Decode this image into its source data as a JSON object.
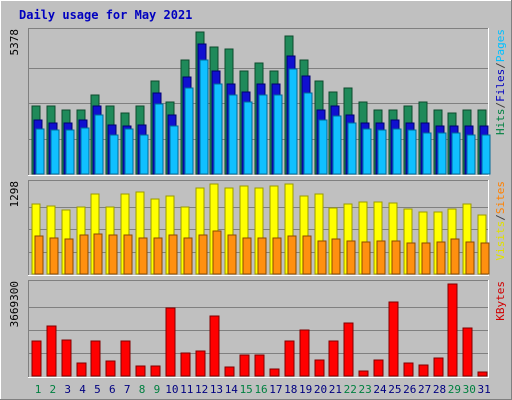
{
  "chart_data": {
    "type": "bar",
    "title": "Daily usage for May 2021",
    "categories": [
      "1",
      "2",
      "3",
      "4",
      "5",
      "6",
      "7",
      "8",
      "9",
      "10",
      "11",
      "12",
      "13",
      "14",
      "15",
      "16",
      "17",
      "18",
      "19",
      "20",
      "21",
      "22",
      "23",
      "24",
      "25",
      "26",
      "27",
      "28",
      "29",
      "30",
      "31"
    ],
    "weekend_days": [
      "1",
      "2",
      "8",
      "9",
      "15",
      "16",
      "22",
      "23",
      "29",
      "30"
    ],
    "panels": [
      {
        "name": "hits",
        "max_label": "5378",
        "ylim": [
          0,
          5378
        ],
        "side_labels": [
          {
            "text": "Hits",
            "color": "#008040"
          },
          {
            "text": "/",
            "color": "#404040"
          },
          {
            "text": "Files",
            "color": "#0000c0"
          },
          {
            "text": "/",
            "color": "#404040"
          },
          {
            "text": "Pages",
            "color": "#00c0ff"
          }
        ],
        "series": [
          {
            "name": "Hits",
            "color": "#1f8a5a",
            "values": [
              2567,
              2567,
              2436,
              2436,
              2993,
              2567,
              2307,
              2567,
              3513,
              2719,
              4323,
              5378,
              4814,
              4718,
              3904,
              4193,
              3904,
              5243,
              4323,
              3513,
              3123,
              3274,
              2719,
              2436,
              2436,
              2567,
              2719,
              2436,
              2307,
              2436,
              2436
            ]
          },
          {
            "name": "Files",
            "color": "#1010d0",
            "values": [
              2045,
              1950,
              1950,
              2045,
              2567,
              1860,
              1800,
              1860,
              3063,
              2240,
              3661,
              4916,
              3904,
              3394,
              3123,
              3394,
              3394,
              4483,
              3702,
              2436,
              2567,
              2240,
              1950,
              1950,
              2045,
              1950,
              1950,
              1800,
              1800,
              1800,
              1800
            ]
          },
          {
            "name": "Pages",
            "color": "#10c0ff",
            "values": [
              1705,
              1660,
              1660,
              1750,
              2240,
              1485,
              1705,
              1485,
              2654,
              1800,
              3263,
              4323,
              3394,
              2993,
              2719,
              2993,
              2993,
              3994,
              3063,
              2045,
              2193,
              1950,
              1705,
              1660,
              1705,
              1660,
              1555,
              1555,
              1555,
              1485,
              1485
            ]
          }
        ]
      },
      {
        "name": "visits",
        "max_label": "1298",
        "ylim": [
          0,
          1298
        ],
        "side_labels": [
          {
            "text": "Visits",
            "color": "#e0e000"
          },
          {
            "text": "/",
            "color": "#404040"
          },
          {
            "text": "Sites",
            "color": "#ff8000"
          }
        ],
        "series": [
          {
            "name": "Visits",
            "color": "#ffff00",
            "values": [
              1004,
              985,
              927,
              966,
              1159,
              966,
              1159,
              1178,
              1082,
              1120,
              966,
              1236,
              1298,
              1236,
              1275,
              1236,
              1275,
              1298,
              1120,
              1159,
              956,
              1004,
              1043,
              1043,
              1024,
              937,
              889,
              889,
              937,
              1004,
              849
            ]
          },
          {
            "name": "Sites",
            "color": "#ff9010",
            "values": [
              541,
              521,
              501,
              560,
              579,
              560,
              560,
              521,
              521,
              560,
              521,
              560,
              618,
              560,
              521,
              521,
              521,
              541,
              541,
              482,
              501,
              482,
              463,
              482,
              482,
              443,
              443,
              463,
              501,
              463,
              443
            ]
          }
        ]
      },
      {
        "name": "kbytes",
        "max_label": "3669300",
        "ylim": [
          0,
          3669300
        ],
        "side_labels": [
          {
            "text": "KBytes",
            "color": "#d00000"
          }
        ],
        "series": [
          {
            "name": "KBytes",
            "color": "#ff0000",
            "values": [
              1400000,
              2000000,
              1450000,
              500000,
              1400000,
              600000,
              1400000,
              400000,
              380000,
              2700000,
              900000,
              1000000,
              2400000,
              350000,
              850000,
              840000,
              270000,
              1400000,
              1850000,
              620000,
              1400000,
              2100000,
              200000,
              640000,
              2950000,
              520000,
              450000,
              700000,
              3669300,
              1900000,
              160000
            ]
          }
        ]
      }
    ]
  }
}
